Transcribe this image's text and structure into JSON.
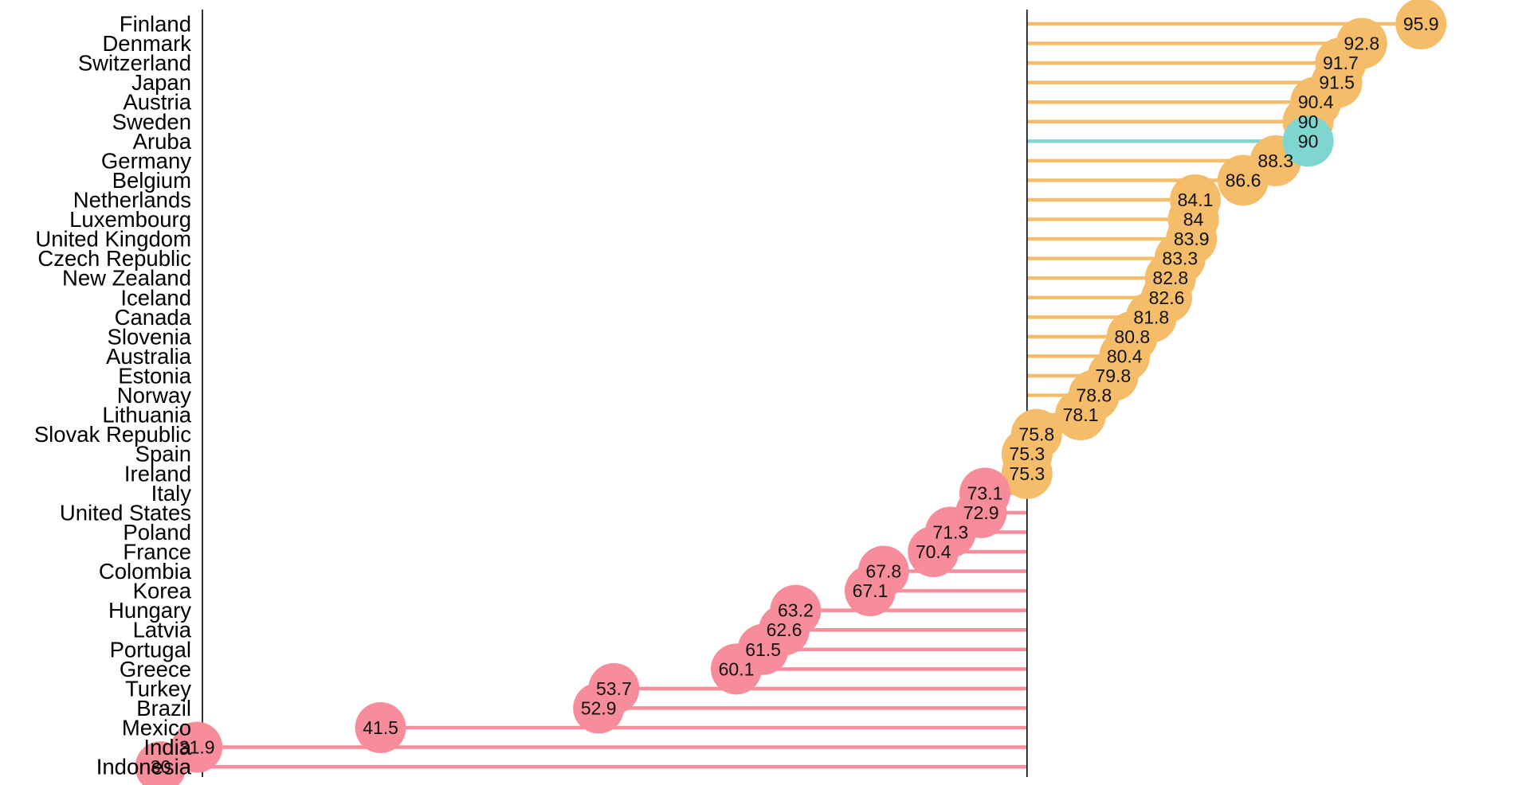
{
  "chart_data": {
    "type": "lollipop",
    "orientation": "horizontal",
    "title": "",
    "xlabel": "",
    "ylabel": "",
    "reference_value": 75.3,
    "xlim": [
      21.6,
      101.6
    ],
    "grid": false,
    "legend": "none",
    "colors": {
      "above_reference": "#F5BD6A",
      "highlight": "#7FD6D0",
      "below_reference": "#F78C9B",
      "axis": "#000000"
    },
    "categories": [
      "Finland",
      "Denmark",
      "Switzerland",
      "Japan",
      "Austria",
      "Sweden",
      "Aruba",
      "Germany",
      "Belgium",
      "Netherlands",
      "Luxembourg",
      "United Kingdom",
      "Czech Republic",
      "New Zealand",
      "Iceland",
      "Canada",
      "Slovenia",
      "Australia",
      "Estonia",
      "Norway",
      "Lithuania",
      "Slovak Republic",
      "Spain",
      "Ireland",
      "Italy",
      "United States",
      "Poland",
      "France",
      "Colombia",
      "Korea",
      "Hungary",
      "Latvia",
      "Portugal",
      "Greece",
      "Turkey",
      "Brazil",
      "Mexico",
      "India",
      "Indonesia"
    ],
    "values": [
      95.9,
      92.8,
      91.7,
      91.5,
      90.4,
      90,
      90,
      88.3,
      86.6,
      84.1,
      84,
      83.9,
      83.3,
      82.8,
      82.6,
      81.8,
      80.8,
      80.4,
      79.8,
      78.8,
      78.1,
      75.8,
      75.3,
      75.3,
      73.1,
      72.9,
      71.3,
      70.4,
      67.8,
      67.1,
      63.2,
      62.6,
      61.5,
      60.1,
      53.7,
      52.9,
      41.5,
      31.9,
      30
    ],
    "value_labels": [
      "95.9",
      "92.8",
      "91.7",
      "91.5",
      "90.4",
      "90",
      "90",
      "88.3",
      "86.6",
      "84.1",
      "84",
      "83.9",
      "83.3",
      "82.8",
      "82.6",
      "81.8",
      "80.8",
      "80.4",
      "79.8",
      "78.8",
      "78.1",
      "75.8",
      "75.3",
      "75.3",
      "73.1",
      "72.9",
      "71.3",
      "70.4",
      "67.8",
      "67.1",
      "63.2",
      "62.6",
      "61.5",
      "60.1",
      "53.7",
      "52.9",
      "41.5",
      "31.9",
      "30"
    ],
    "highlight": [
      "Aruba"
    ]
  }
}
